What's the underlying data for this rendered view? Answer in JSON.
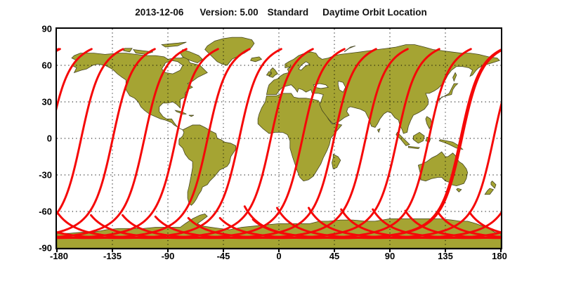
{
  "header": {
    "date": "2013-12-06",
    "version_label": "Version: 5.00",
    "product": "Standard",
    "plot_title": "Daytime Orbit Location"
  },
  "axes": {
    "lat_ticks": [
      90,
      60,
      30,
      0,
      -30,
      -60,
      -90
    ],
    "lon_ticks": [
      -180,
      -135,
      -90,
      -45,
      0,
      45,
      90,
      135,
      180
    ],
    "lat_range": [
      -90,
      90
    ],
    "lon_range": [
      -180,
      180
    ],
    "grid_lat": [
      60,
      30,
      0,
      -30,
      -60
    ],
    "grid_lon": [
      -135,
      -90,
      -45,
      0,
      45,
      90,
      135
    ],
    "grid_style": "dotted"
  },
  "colors": {
    "land": "#a5a433",
    "coastline": "#44441e",
    "ocean": "#ffffff",
    "frame": "#000000",
    "track": "#f50808",
    "text": "#000000"
  },
  "orbit": {
    "description": "daytime ground tracks, descending passes NE to SW with south polar overlap band",
    "inclination_deg": 98.2,
    "tracks_count": 15,
    "first_tip_lon_deg": -177.5,
    "tip_spacing_deg": 25.63,
    "north_cutoff_lat_deg": 73.4,
    "south_apex_lat_deg": -81.8,
    "u_start_deg": 104.5,
    "u_end_base_deg": 304,
    "u_end_step_per_track_deg": -0.8,
    "earth_rot_deg_per_u": 0.0685,
    "tip_to_node_offset_deg": 34.07,
    "track_width_units": 1.7
  }
}
